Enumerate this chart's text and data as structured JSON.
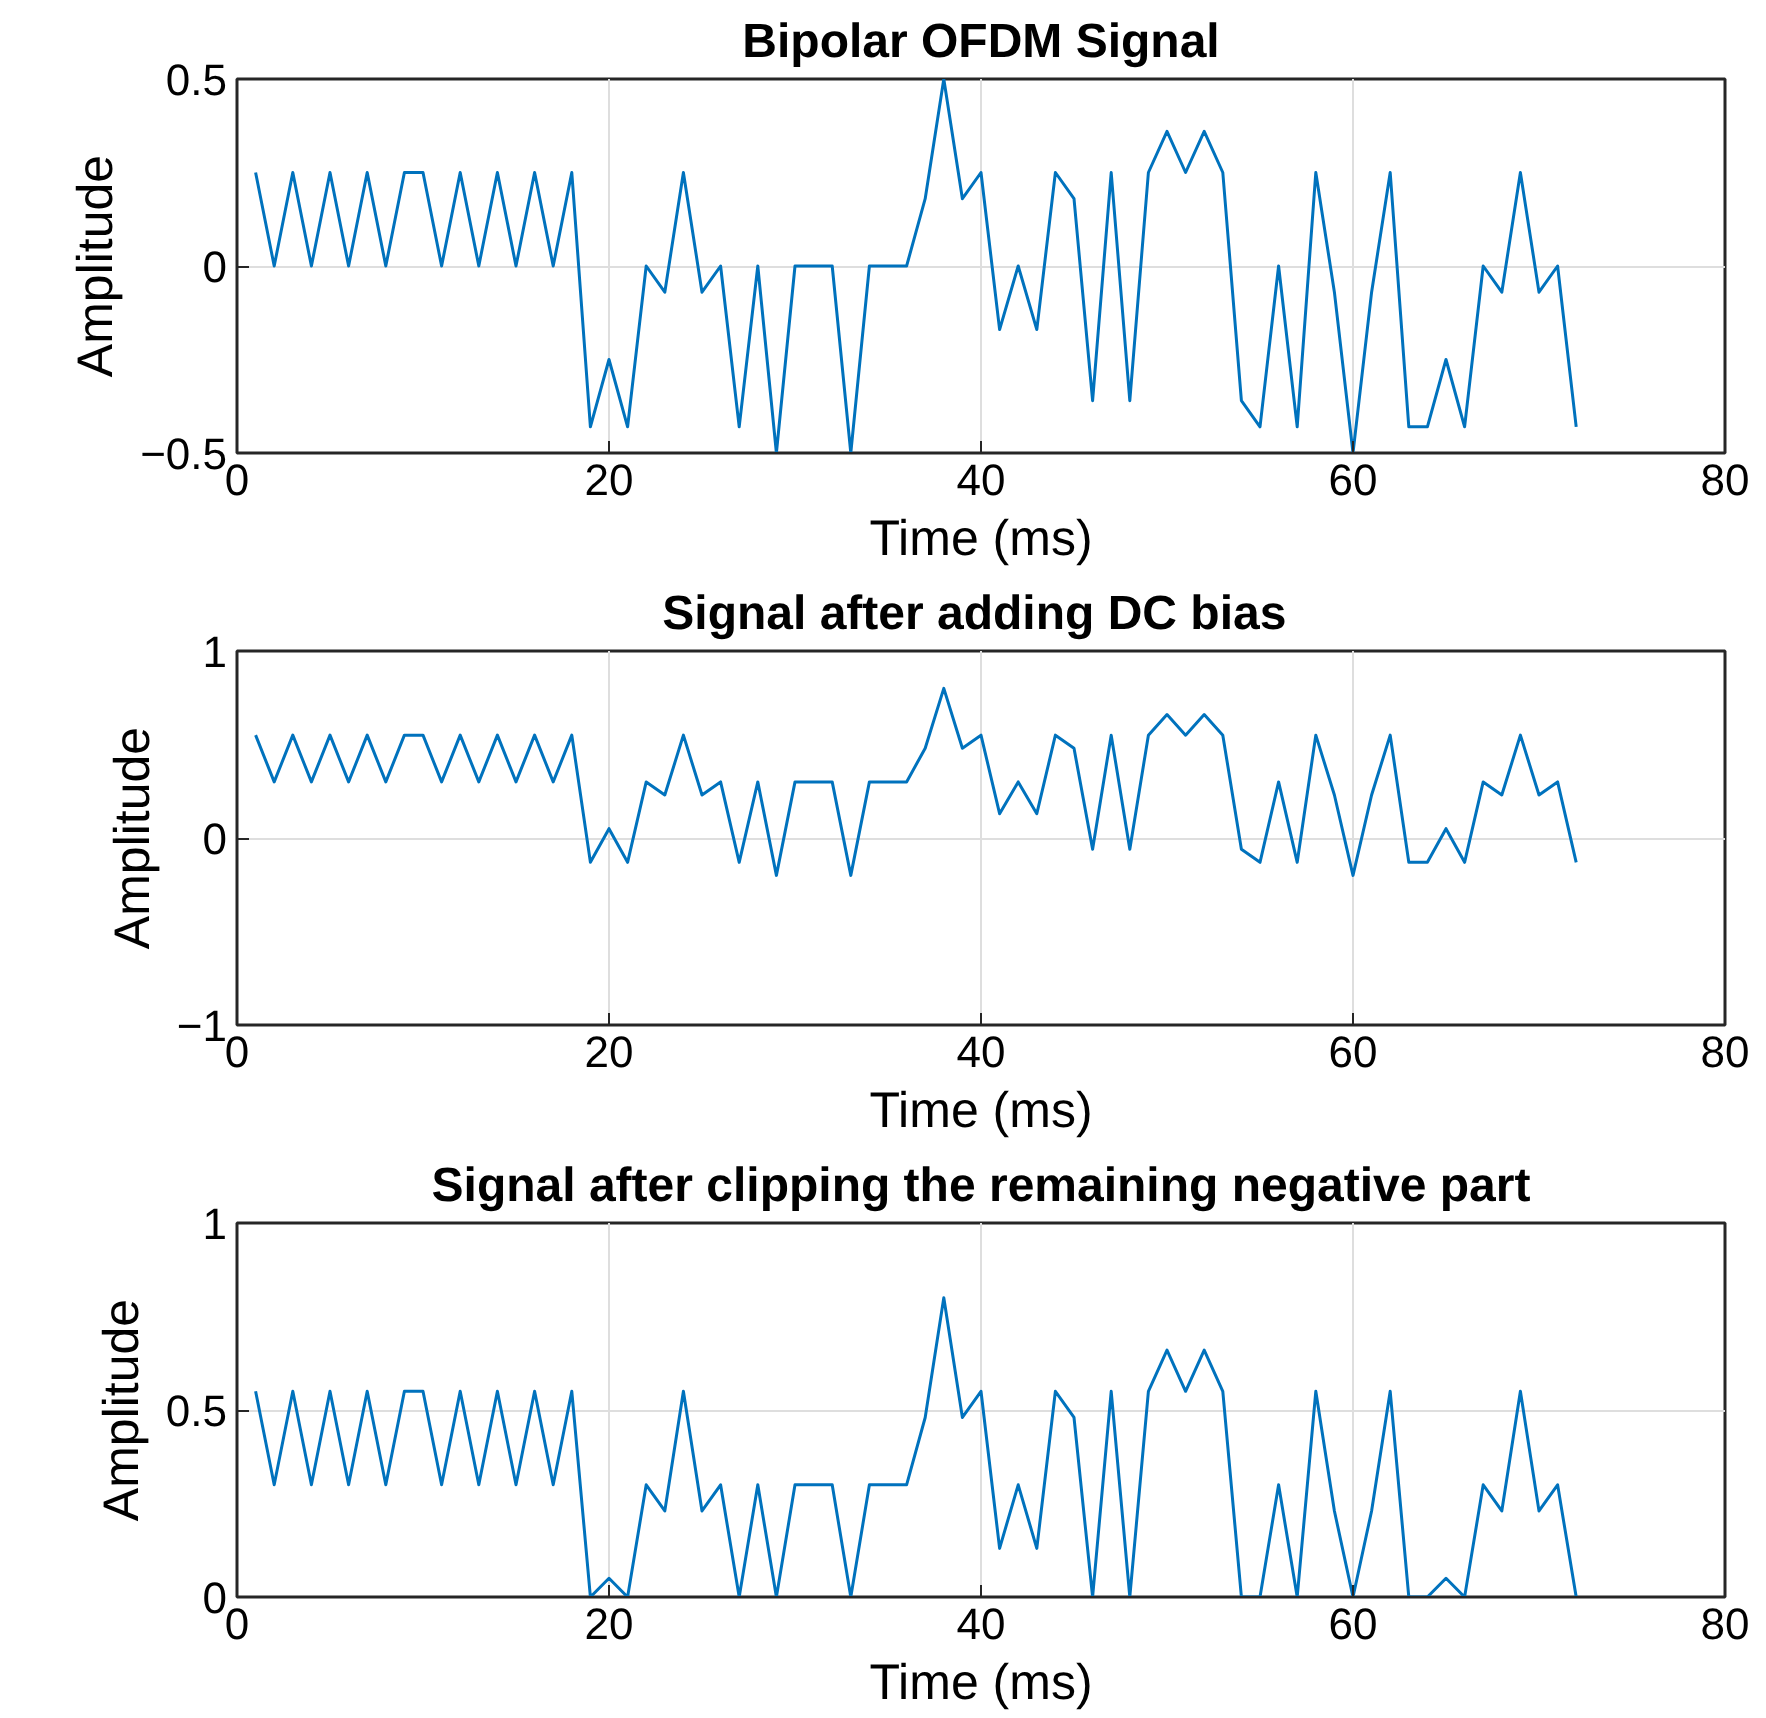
{
  "chart_data": [
    {
      "type": "line",
      "title": "Bipolar OFDM Signal",
      "xlabel": "Time (ms)",
      "ylabel": "Amplitude",
      "color": "#0072bd",
      "grid": true,
      "x": [
        1,
        2,
        3,
        4,
        5,
        6,
        7,
        8,
        9,
        10,
        11,
        12,
        13,
        14,
        15,
        16,
        17,
        18,
        19,
        20,
        21,
        22,
        23,
        24,
        25,
        26,
        27,
        28,
        29,
        30,
        31,
        32,
        33,
        34,
        35,
        36,
        37,
        38,
        39,
        40,
        41,
        42,
        43,
        44,
        45,
        46,
        47,
        48,
        49,
        50,
        51,
        52,
        53,
        54,
        55,
        56,
        57,
        58,
        59,
        60,
        61,
        62,
        63,
        64,
        65,
        66,
        67,
        68,
        69,
        70,
        71,
        72
      ],
      "values": [
        0.25,
        0,
        0.25,
        0,
        0.25,
        0,
        0.25,
        0,
        0.25,
        0.25,
        0,
        0.25,
        0,
        0.25,
        0,
        0.25,
        0,
        0.25,
        -0.43,
        -0.25,
        -0.43,
        0,
        -0.07,
        0.25,
        -0.07,
        0,
        -0.43,
        0,
        -0.5,
        0,
        0,
        0,
        -0.5,
        0,
        0,
        0,
        0.18,
        0.5,
        0.18,
        0.25,
        -0.17,
        0,
        -0.17,
        0.25,
        0.18,
        -0.36,
        0.25,
        -0.36,
        0.25,
        0.36,
        0.25,
        0.36,
        0.25,
        -0.36,
        -0.43,
        0,
        -0.43,
        0.25,
        -0.07,
        -0.5,
        -0.07,
        0.25,
        -0.43,
        -0.43,
        -0.25,
        -0.43,
        0,
        -0.07,
        0.25,
        -0.07,
        0,
        -0.43
      ],
      "xlim": [
        0,
        80
      ],
      "xticks": [
        0,
        20,
        40,
        60,
        80
      ],
      "ylim": [
        -0.5,
        0.5
      ],
      "yticks": [
        -0.5,
        0,
        0.5
      ]
    },
    {
      "type": "line",
      "title": "Signal after adding  DC bias",
      "xlabel": "Time (ms)",
      "ylabel": "Amplitude",
      "color": "#0072bd",
      "grid": true,
      "x": [
        1,
        2,
        3,
        4,
        5,
        6,
        7,
        8,
        9,
        10,
        11,
        12,
        13,
        14,
        15,
        16,
        17,
        18,
        19,
        20,
        21,
        22,
        23,
        24,
        25,
        26,
        27,
        28,
        29,
        30,
        31,
        32,
        33,
        34,
        35,
        36,
        37,
        38,
        39,
        40,
        41,
        42,
        43,
        44,
        45,
        46,
        47,
        48,
        49,
        50,
        51,
        52,
        53,
        54,
        55,
        56,
        57,
        58,
        59,
        60,
        61,
        62,
        63,
        64,
        65,
        66,
        67,
        68,
        69,
        70,
        71,
        72
      ],
      "values": [
        0.55,
        0.3,
        0.55,
        0.3,
        0.55,
        0.3,
        0.55,
        0.3,
        0.55,
        0.55,
        0.3,
        0.55,
        0.3,
        0.55,
        0.3,
        0.55,
        0.3,
        0.55,
        -0.13,
        0.05,
        -0.13,
        0.3,
        0.23,
        0.55,
        0.23,
        0.3,
        -0.13,
        0.3,
        -0.2,
        0.3,
        0.3,
        0.3,
        -0.2,
        0.3,
        0.3,
        0.3,
        0.48,
        0.8,
        0.48,
        0.55,
        0.13,
        0.3,
        0.13,
        0.55,
        0.48,
        -0.06,
        0.55,
        -0.06,
        0.55,
        0.66,
        0.55,
        0.66,
        0.55,
        -0.06,
        -0.13,
        0.3,
        -0.13,
        0.55,
        0.23,
        -0.2,
        0.23,
        0.55,
        -0.13,
        -0.13,
        0.05,
        -0.13,
        0.3,
        0.23,
        0.55,
        0.23,
        0.3,
        -0.13
      ],
      "xlim": [
        0,
        80
      ],
      "xticks": [
        0,
        20,
        40,
        60,
        80
      ],
      "ylim": [
        -1,
        1
      ],
      "yticks": [
        -1,
        0,
        1
      ]
    },
    {
      "type": "line",
      "title": "Signal after clipping the remaining negative part",
      "xlabel": "Time (ms)",
      "ylabel": "Amplitude",
      "color": "#0072bd",
      "grid": true,
      "x": [
        1,
        2,
        3,
        4,
        5,
        6,
        7,
        8,
        9,
        10,
        11,
        12,
        13,
        14,
        15,
        16,
        17,
        18,
        19,
        20,
        21,
        22,
        23,
        24,
        25,
        26,
        27,
        28,
        29,
        30,
        31,
        32,
        33,
        34,
        35,
        36,
        37,
        38,
        39,
        40,
        41,
        42,
        43,
        44,
        45,
        46,
        47,
        48,
        49,
        50,
        51,
        52,
        53,
        54,
        55,
        56,
        57,
        58,
        59,
        60,
        61,
        62,
        63,
        64,
        65,
        66,
        67,
        68,
        69,
        70,
        71,
        72
      ],
      "values": [
        0.55,
        0.3,
        0.55,
        0.3,
        0.55,
        0.3,
        0.55,
        0.3,
        0.55,
        0.55,
        0.3,
        0.55,
        0.3,
        0.55,
        0.3,
        0.55,
        0.3,
        0.55,
        0,
        0.05,
        0,
        0.3,
        0.23,
        0.55,
        0.23,
        0.3,
        0,
        0.3,
        0,
        0.3,
        0.3,
        0.3,
        0,
        0.3,
        0.3,
        0.3,
        0.48,
        0.8,
        0.48,
        0.55,
        0.13,
        0.3,
        0.13,
        0.55,
        0.48,
        0,
        0.55,
        0,
        0.55,
        0.66,
        0.55,
        0.66,
        0.55,
        0,
        0,
        0.3,
        0,
        0.55,
        0.23,
        0,
        0.23,
        0.55,
        0,
        0,
        0.05,
        0,
        0.3,
        0.23,
        0.55,
        0.23,
        0.3,
        0
      ],
      "xlim": [
        0,
        80
      ],
      "xticks": [
        0,
        20,
        40,
        60,
        80
      ],
      "ylim": [
        0,
        1
      ],
      "yticks": [
        0,
        0.5,
        1
      ]
    }
  ]
}
